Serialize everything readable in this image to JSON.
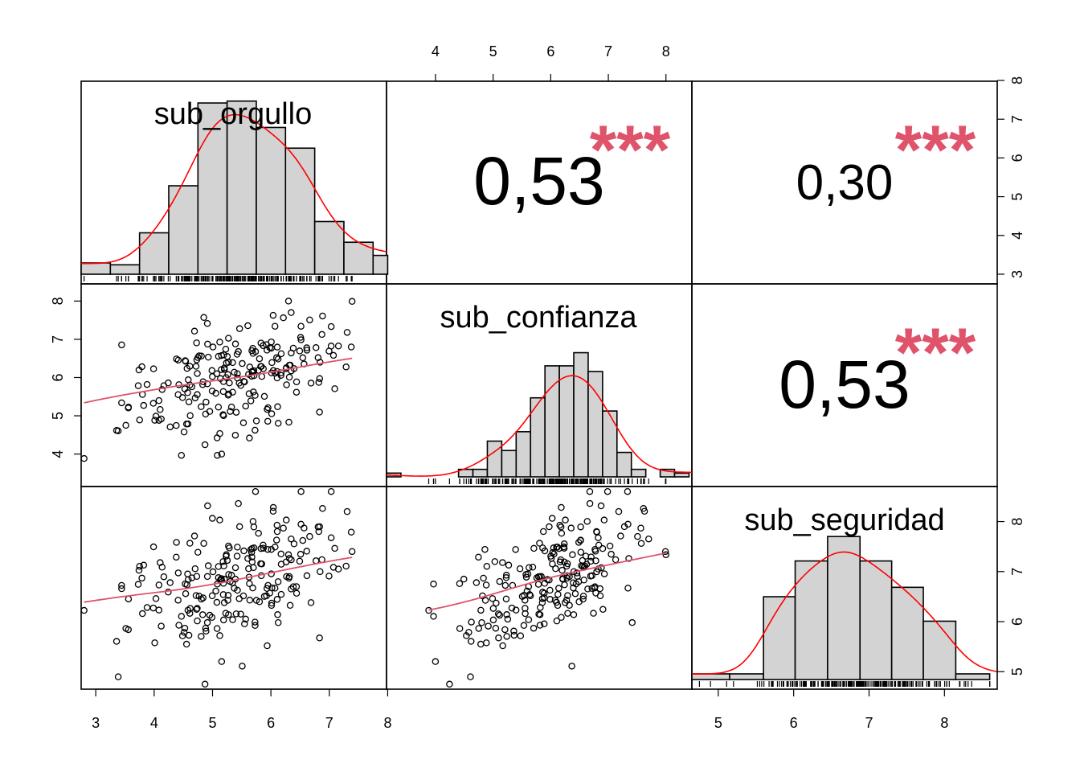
{
  "chart_data": {
    "type": "scatter-matrix",
    "title": "",
    "variables": [
      "sub_orgullo",
      "sub_confianza",
      "sub_seguridad"
    ],
    "axes": {
      "sub_orgullo": {
        "ticks": [
          "3",
          "4",
          "5",
          "6",
          "7",
          "8"
        ],
        "range": [
          2.75,
          7.98
        ]
      },
      "sub_confianza": {
        "ticks": [
          "4",
          "5",
          "6",
          "7",
          "8"
        ],
        "range": [
          3.15,
          8.45
        ]
      },
      "sub_seguridad": {
        "ticks": [
          "5",
          "6",
          "7",
          "8"
        ],
        "range": [
          4.65,
          8.7
        ]
      }
    },
    "correlations": [
      {
        "pair": [
          "sub_orgullo",
          "sub_confianza"
        ],
        "label": "0,53",
        "stars": "***"
      },
      {
        "pair": [
          "sub_orgullo",
          "sub_seguridad"
        ],
        "label": "0,30",
        "stars": "***"
      },
      {
        "pair": [
          "sub_confianza",
          "sub_seguridad"
        ],
        "label": "0,53",
        "stars": "***"
      }
    ],
    "histograms": {
      "sub_orgullo": {
        "breaks": [
          2.75,
          3.25,
          3.75,
          4.25,
          4.75,
          5.25,
          5.75,
          6.25,
          6.75,
          7.25,
          7.75,
          8.0
        ],
        "heights": [
          0.06,
          0.05,
          0.22,
          0.47,
          0.91,
          0.92,
          0.78,
          0.67,
          0.28,
          0.17,
          0.1
        ]
      },
      "sub_confianza": {
        "breaks": [
          3.15,
          3.4,
          3.65,
          3.9,
          4.15,
          4.4,
          4.65,
          4.9,
          5.15,
          5.4,
          5.65,
          5.9,
          6.15,
          6.4,
          6.65,
          6.9,
          7.15,
          7.4,
          7.65,
          7.9,
          8.15,
          8.4
        ],
        "heights": [
          0.02,
          0.0,
          0.0,
          0.0,
          0.0,
          0.04,
          0.04,
          0.19,
          0.14,
          0.24,
          0.42,
          0.59,
          0.59,
          0.66,
          0.56,
          0.35,
          0.13,
          0.04,
          0.0,
          0.04,
          0.02
        ]
      },
      "sub_seguridad": {
        "breaks": [
          4.65,
          5.15,
          5.6,
          6.02,
          6.45,
          6.88,
          7.3,
          7.72,
          8.15,
          8.6
        ],
        "heights": [
          0.03,
          0.03,
          0.44,
          0.63,
          0.76,
          0.63,
          0.49,
          0.31,
          0.03
        ]
      }
    },
    "pairs": [
      {
        "x": "sub_orgullo",
        "y": "sub_confianza"
      },
      {
        "x": "sub_orgullo",
        "y": "sub_seguridad"
      },
      {
        "x": "sub_confianza",
        "y": "sub_seguridad"
      }
    ],
    "grid": false,
    "legend": "none",
    "colors": {
      "hist_fill": "#d3d3d3",
      "density": "#ff0000",
      "smooth": "#df536b",
      "stars": "#df536b"
    }
  }
}
